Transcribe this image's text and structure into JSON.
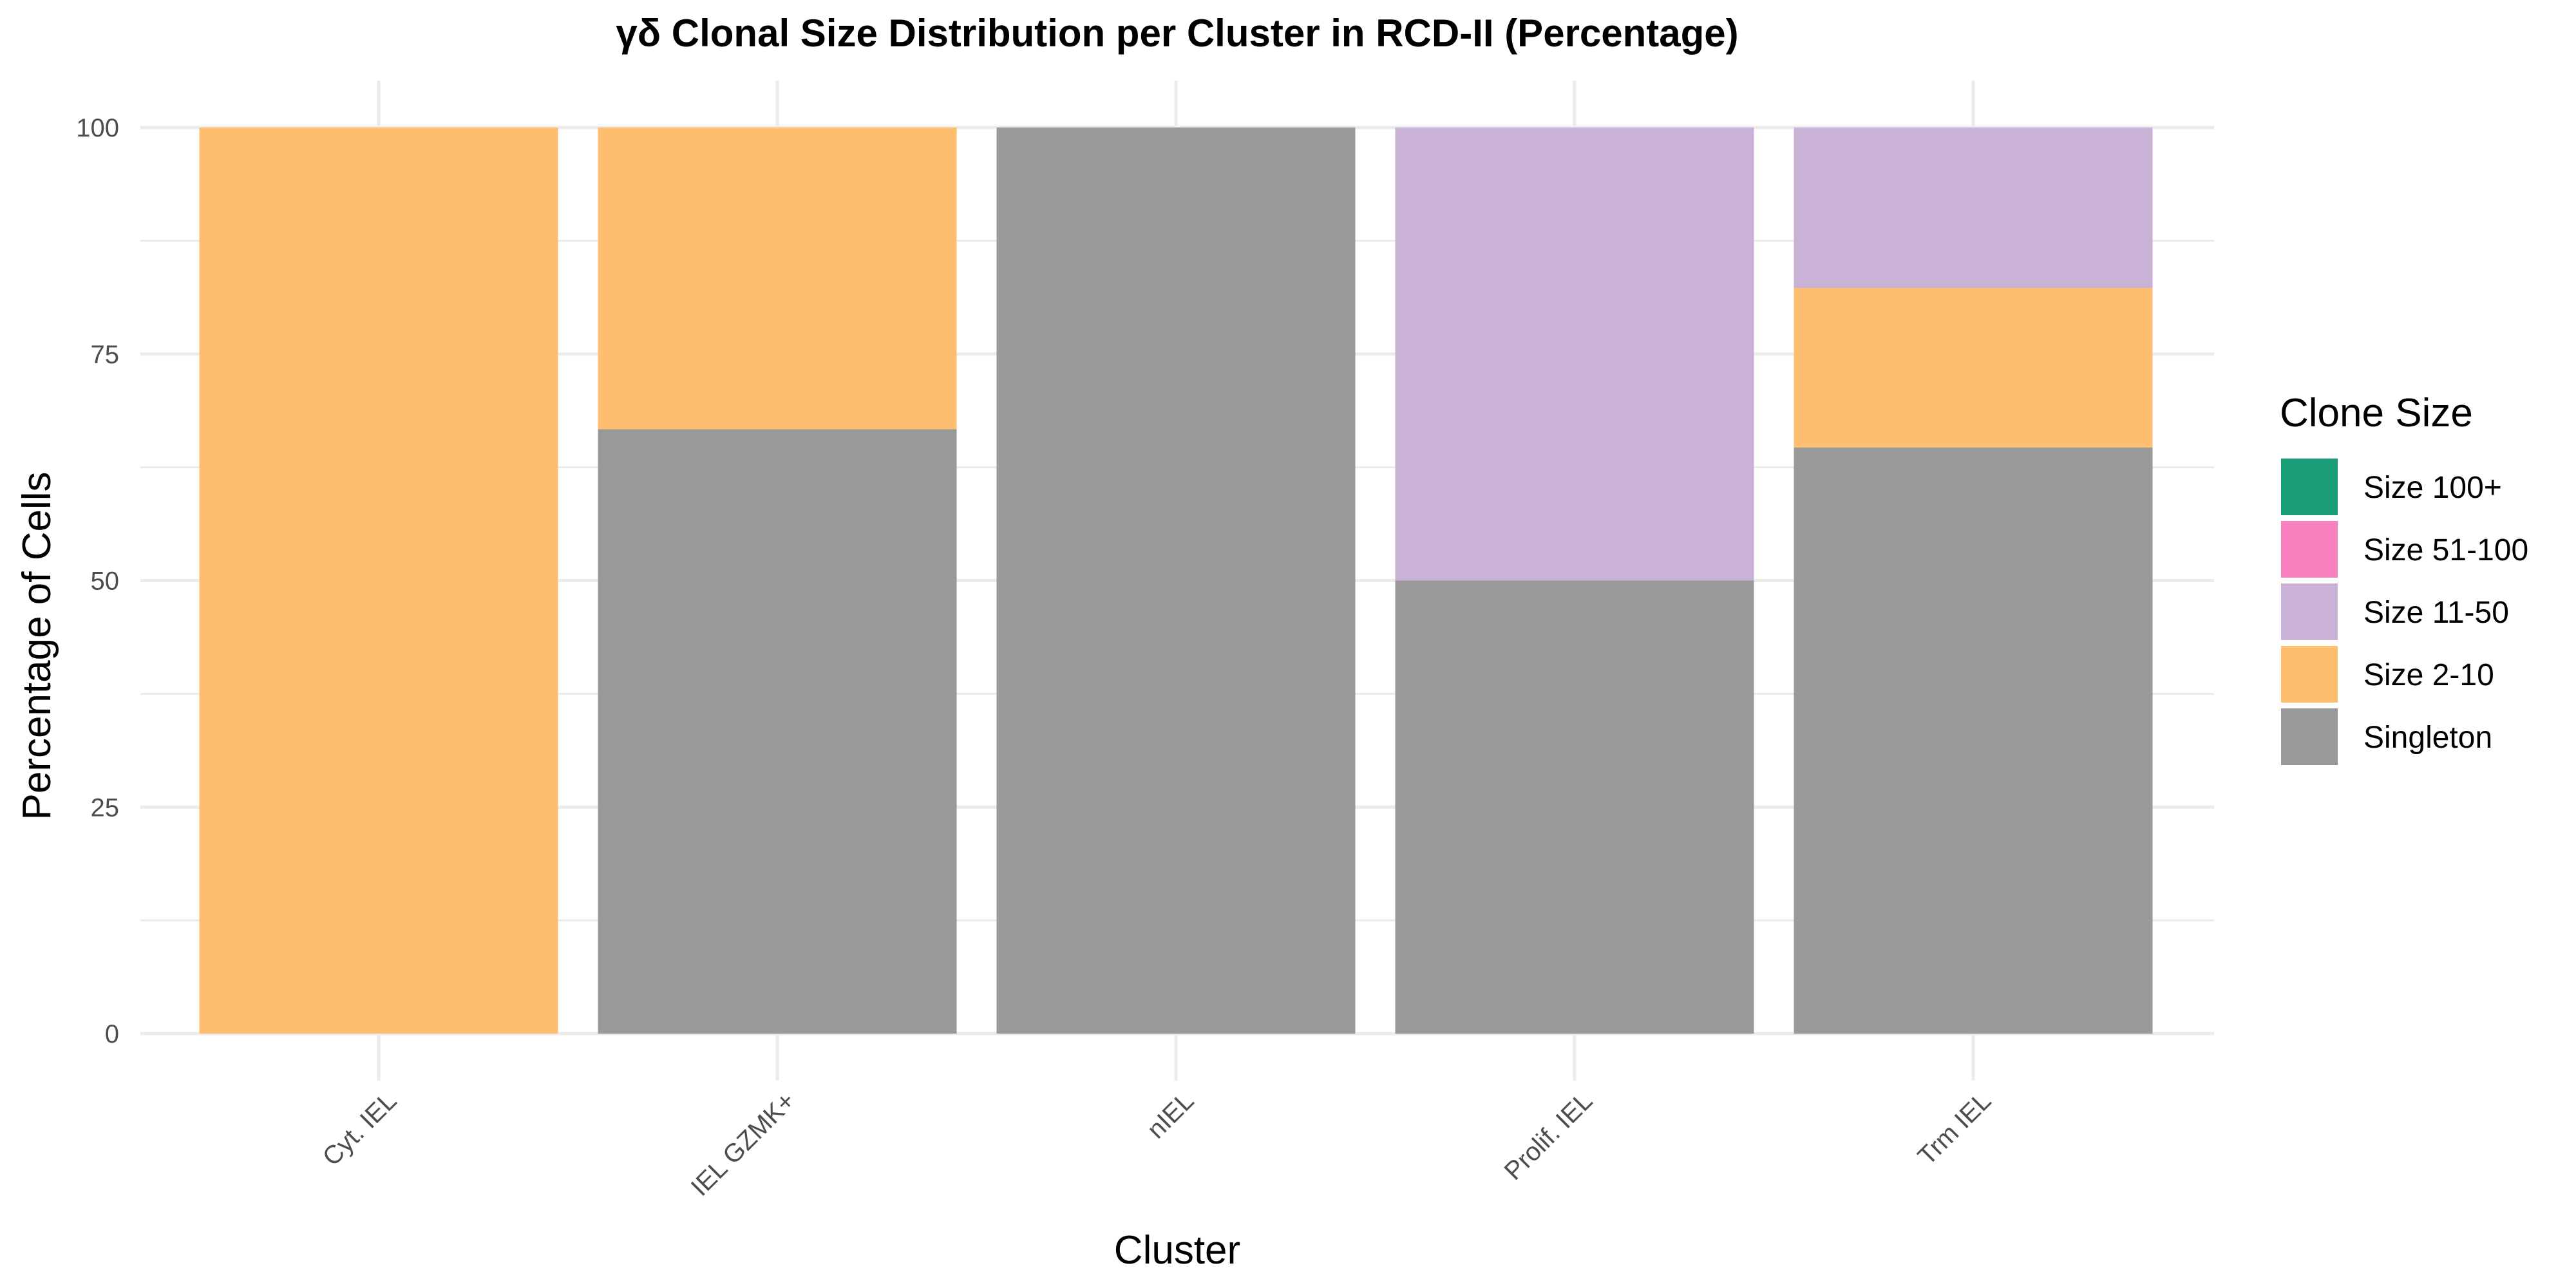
{
  "chart_data": {
    "type": "bar",
    "stacked": true,
    "title": "γδ Clonal Size Distribution per Cluster in RCD-II (Percentage)",
    "xlabel": "Cluster",
    "ylabel": "Percentage of Cells",
    "ylim": [
      0,
      100
    ],
    "yticks": [
      0,
      25,
      50,
      75,
      100
    ],
    "grid": true,
    "legend_position": "right",
    "categories": [
      "Cyt. IEL",
      "IEL GZMK+",
      "nIEL",
      "Prolif. IEL",
      "Trm IEL"
    ],
    "series": [
      {
        "name": "Singleton",
        "color": "#999999",
        "values": [
          0,
          66.7,
          100,
          50,
          64.7
        ]
      },
      {
        "name": "Size 2-10",
        "color": "#FDBF6F",
        "values": [
          100,
          33.3,
          0,
          0,
          17.6
        ]
      },
      {
        "name": "Size 11-50",
        "color": "#CAB2D6",
        "values": [
          0,
          0,
          0,
          50,
          17.7
        ]
      },
      {
        "name": "Size 51-100",
        "color": "#F781BF",
        "values": [
          0,
          0,
          0,
          0,
          0
        ]
      },
      {
        "name": "Size 100+",
        "color": "#1B9E77",
        "values": [
          0,
          0,
          0,
          0,
          0
        ]
      }
    ],
    "legend": {
      "title": "Clone Size",
      "order": [
        "Size 100+",
        "Size 51-100",
        "Size 11-50",
        "Size 2-10",
        "Singleton"
      ]
    }
  },
  "colors": {
    "grid": "#EBEBEB",
    "tick_text": "#4D4D4D",
    "background": "#FFFFFF"
  }
}
